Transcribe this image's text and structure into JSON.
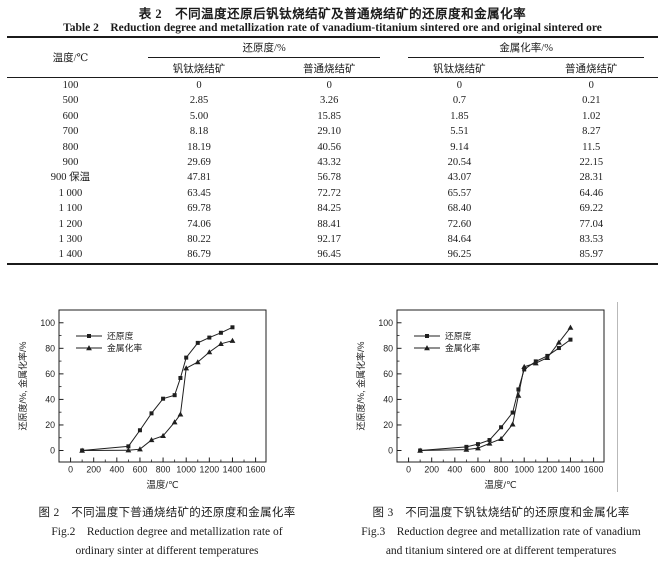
{
  "page": {
    "background": "#ffffff",
    "ink": "#1b1b1b"
  },
  "table": {
    "title_zh": "表 2　不同温度还原后钒钛烧结矿及普通烧结矿的还原度和金属化率",
    "title_en": "Table 2　Reduction degree and metallization rate of vanadium-titanium sintered ore and original sintered ore",
    "col_temp": "温度/℃",
    "group_headers": [
      "还原度/%",
      "金属化率/%"
    ],
    "sub_headers": [
      "钒钛烧结矿",
      "普通烧结矿",
      "钒钛烧结矿",
      "普通烧结矿"
    ],
    "rows": [
      [
        "100",
        "0",
        "0",
        "0",
        "0"
      ],
      [
        "500",
        "2.85",
        "3.26",
        "0.7",
        "0.21"
      ],
      [
        "600",
        "5.00",
        "15.85",
        "1.85",
        "1.02"
      ],
      [
        "700",
        "8.18",
        "29.10",
        "5.51",
        "8.27"
      ],
      [
        "800",
        "18.19",
        "40.56",
        "9.14",
        "11.5"
      ],
      [
        "900",
        "29.69",
        "43.32",
        "20.54",
        "22.15"
      ],
      [
        "900 保温",
        "47.81",
        "56.78",
        "43.07",
        "28.31"
      ],
      [
        "1 000",
        "63.45",
        "72.72",
        "65.57",
        "64.46"
      ],
      [
        "1 100",
        "69.78",
        "84.25",
        "68.40",
        "69.22"
      ],
      [
        "1 200",
        "74.06",
        "88.41",
        "72.60",
        "77.04"
      ],
      [
        "1 300",
        "80.22",
        "92.17",
        "84.64",
        "83.53"
      ],
      [
        "1 400",
        "86.79",
        "96.45",
        "96.25",
        "85.97"
      ]
    ]
  },
  "chart_data": [
    {
      "id": "fig2",
      "type": "line",
      "title": "",
      "xlabel": "温度/℃",
      "ylabel": "还原度/%, 金属化率/%",
      "xlim": [
        0,
        1600
      ],
      "ylim": [
        0,
        100
      ],
      "xtick_step": 200,
      "ytick_step": 20,
      "grid": false,
      "legend_position": "upper-left",
      "x": [
        100,
        500,
        600,
        700,
        800,
        900,
        950,
        1000,
        1100,
        1200,
        1300,
        1400
      ],
      "x_note": "x=950 plots the 900 ℃ holding (900 保温) point",
      "series": [
        {
          "name": "还原度",
          "marker": "square",
          "values": [
            0,
            3.26,
            15.85,
            29.1,
            40.56,
            43.32,
            56.78,
            72.72,
            84.25,
            88.41,
            92.17,
            96.45
          ]
        },
        {
          "name": "金属化率",
          "marker": "triangle",
          "values": [
            0,
            0.21,
            1.02,
            8.27,
            11.5,
            22.15,
            28.31,
            64.46,
            69.22,
            77.04,
            83.53,
            85.97
          ]
        }
      ]
    },
    {
      "id": "fig3",
      "type": "line",
      "title": "",
      "xlabel": "温度/℃",
      "ylabel": "还原度/%, 金属化率/%",
      "xlim": [
        0,
        1600
      ],
      "ylim": [
        0,
        100
      ],
      "xtick_step": 200,
      "ytick_step": 20,
      "grid": false,
      "legend_position": "upper-left",
      "x": [
        100,
        500,
        600,
        700,
        800,
        900,
        950,
        1000,
        1100,
        1200,
        1300,
        1400
      ],
      "x_note": "x=950 plots the 900 ℃ holding (900 保温) point",
      "series": [
        {
          "name": "还原度",
          "marker": "square",
          "values": [
            0,
            2.85,
            5.0,
            8.18,
            18.19,
            29.69,
            47.81,
            63.45,
            69.78,
            74.06,
            80.22,
            86.79
          ]
        },
        {
          "name": "金属化率",
          "marker": "triangle",
          "values": [
            0,
            0.7,
            1.85,
            5.51,
            9.14,
            20.54,
            43.07,
            65.57,
            68.4,
            72.6,
            84.64,
            96.25
          ]
        }
      ]
    }
  ],
  "figures": {
    "fig2": {
      "caption_zh": "图 2　不同温度下普通烧结矿的还原度和金属化率",
      "caption_en_1": "Fig.2　Reduction degree and metallization rate of",
      "caption_en_2": "ordinary sinter at different temperatures"
    },
    "fig3": {
      "caption_zh": "图 3　不同温度下钒钛烧结矿的还原度和金属化率",
      "caption_en_1": "Fig.3　Reduction degree and metallization rate of vanadium",
      "caption_en_2": "and titanium sintered ore at different temperatures"
    }
  }
}
